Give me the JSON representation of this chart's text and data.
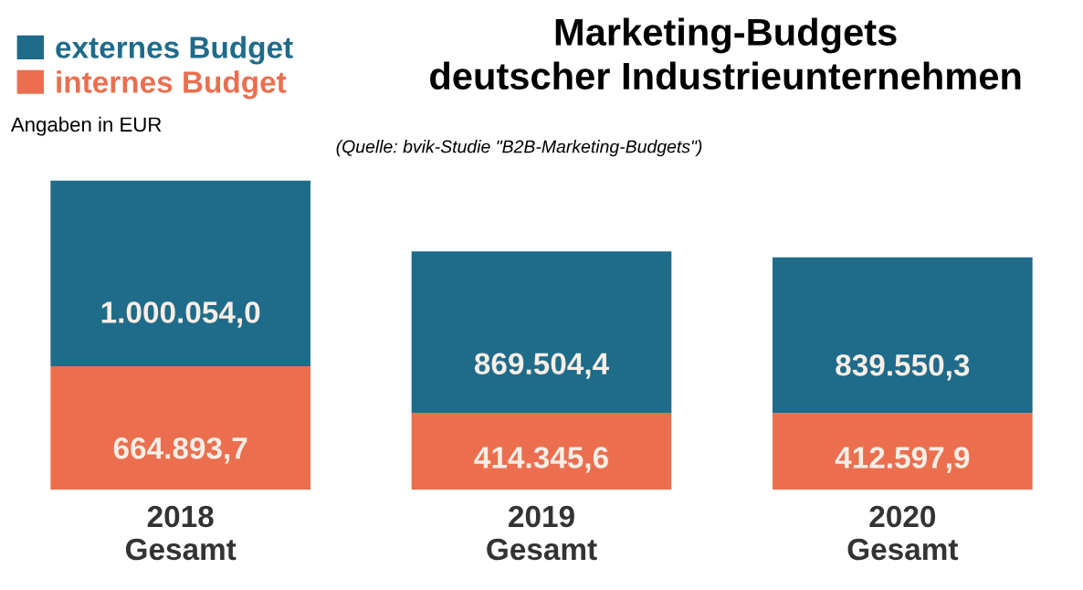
{
  "chart_data": {
    "type": "bar",
    "stacked": true,
    "title": "Marketing-Budgets\ndeutscher Industrieunternehmen",
    "annotations": [
      "(Quelle: bvik-Studie \"B2B-Marketing-Budgets\")",
      "Angaben in EUR"
    ],
    "categories": [
      "2018\nGesamt",
      "2019\nGesamt",
      "2020\nGesamt"
    ],
    "series": [
      {
        "name": "internes Budget",
        "color": "#eb6f4f",
        "values": [
          664893.7,
          414345.6,
          412597.9
        ],
        "value_labels": [
          "664.893,7",
          "414.345,6",
          "412.597,9"
        ]
      },
      {
        "name": "externes Budget",
        "color": "#1f6b8a",
        "values": [
          1000054.0,
          869504.4,
          839550.3
        ],
        "value_labels": [
          "1.000.054,0",
          "869.504,4",
          "839.550,3"
        ]
      }
    ],
    "legend": "top left",
    "grid": false
  }
}
